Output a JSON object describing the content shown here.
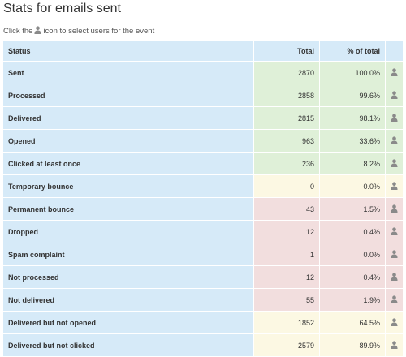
{
  "page": {
    "title": "Stats for emails sent",
    "hint_before": "Click the",
    "hint_after": "icon to select users for the event"
  },
  "table": {
    "headers": {
      "status": "Status",
      "total": "Total",
      "pct": "% of total"
    },
    "rows": [
      {
        "status": "Sent",
        "total": "2870",
        "pct": "100.0%",
        "tone": "green"
      },
      {
        "status": "Processed",
        "total": "2858",
        "pct": "99.6%",
        "tone": "green"
      },
      {
        "status": "Delivered",
        "total": "2815",
        "pct": "98.1%",
        "tone": "green"
      },
      {
        "status": "Opened",
        "total": "963",
        "pct": "33.6%",
        "tone": "green"
      },
      {
        "status": "Clicked at least once",
        "total": "236",
        "pct": "8.2%",
        "tone": "green"
      },
      {
        "status": "Temporary bounce",
        "total": "0",
        "pct": "0.0%",
        "tone": "yellow"
      },
      {
        "status": "Permanent bounce",
        "total": "43",
        "pct": "1.5%",
        "tone": "red"
      },
      {
        "status": "Dropped",
        "total": "12",
        "pct": "0.4%",
        "tone": "red"
      },
      {
        "status": "Spam complaint",
        "total": "1",
        "pct": "0.0%",
        "tone": "red"
      },
      {
        "status": "Not processed",
        "total": "12",
        "pct": "0.4%",
        "tone": "red"
      },
      {
        "status": "Not delivered",
        "total": "55",
        "pct": "1.9%",
        "tone": "red"
      },
      {
        "status": "Delivered but not opened",
        "total": "1852",
        "pct": "64.5%",
        "tone": "yellow"
      },
      {
        "status": "Delivered but not clicked",
        "total": "2579",
        "pct": "89.9%",
        "tone": "yellow"
      }
    ]
  },
  "colors": {
    "header_bg": "#d6eaf8",
    "green": "#dff0d8",
    "yellow": "#fcf8e3",
    "red": "#f2dede",
    "icon": "#8a8a8a"
  },
  "icons": {
    "select_users": "user-icon"
  }
}
